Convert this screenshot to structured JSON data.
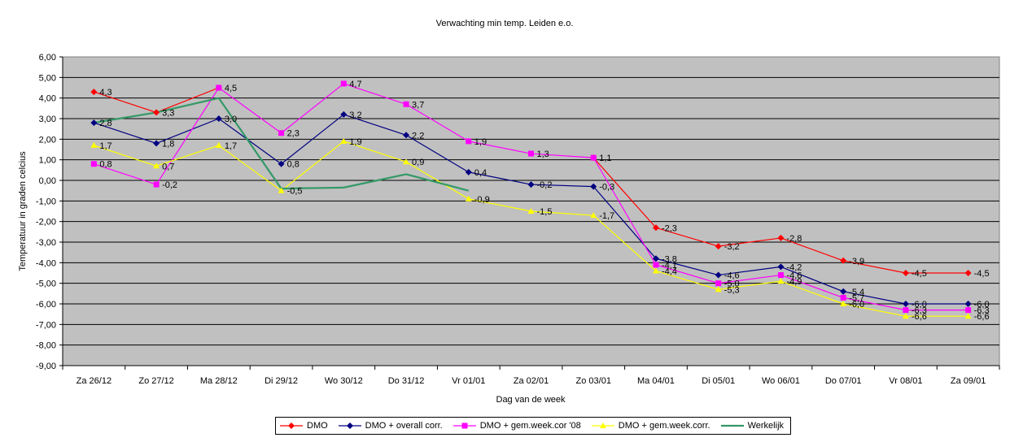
{
  "chart_data": {
    "type": "line",
    "title": "Verwachting min temp. Leiden e.o.",
    "xlabel": "Dag van de week",
    "ylabel": "Temperatuur in graden celcius",
    "ylim": [
      -9,
      6
    ],
    "ytick_step": 1,
    "ytick_labels": [
      "-9,00",
      "-8,00",
      "-7,00",
      "-6,00",
      "-5,00",
      "-4,00",
      "-3,00",
      "-2,00",
      "-1,00",
      "0,00",
      "1,00",
      "2,00",
      "3,00",
      "4,00",
      "5,00",
      "6,00"
    ],
    "grid": true,
    "plot_background": "#c0c0c0",
    "legend_position": "bottom",
    "categories": [
      "Za 26/12",
      "Zo 27/12",
      "Ma 28/12",
      "Di 29/12",
      "Wo 30/12",
      "Do 31/12",
      "Vr 01/01",
      "Za 02/01",
      "Zo 03/01",
      "Ma 04/01",
      "Di 05/01",
      "Wo 06/01",
      "Do 07/01",
      "Vr 08/01",
      "Za 09/01"
    ],
    "series": [
      {
        "name": "DMO",
        "color": "#ff0000",
        "marker": "diamond",
        "values": [
          4.3,
          3.3,
          4.5,
          null,
          null,
          null,
          null,
          null,
          1.1,
          -2.3,
          -3.2,
          -2.8,
          -3.9,
          -4.5,
          -4.5
        ],
        "labels": [
          "4,3",
          "3,3",
          "4,5",
          "",
          "",
          "",
          "",
          "",
          "1,1",
          "-2,3",
          "-3,2",
          "-2,8",
          "-3,9",
          "-4,5",
          "-4,5"
        ]
      },
      {
        "name": "DMO + overall corr.",
        "color": "#000080",
        "marker": "diamond",
        "values": [
          2.8,
          1.8,
          3.0,
          0.8,
          3.2,
          2.2,
          0.4,
          -0.2,
          -0.3,
          -3.8,
          -4.6,
          -4.2,
          -5.4,
          -6.0,
          -6.0
        ],
        "labels": [
          "2,8",
          "1,8",
          "3,0",
          "0,8",
          "3,2",
          "2,2",
          "0,4",
          "-0,2",
          "-0,3",
          "-3,8",
          "-4,6",
          "-4,2",
          "-5,4",
          "-6,0",
          "-6,0"
        ]
      },
      {
        "name": "DMO + gem.week.cor '08",
        "color": "#ff00ff",
        "marker": "square",
        "values": [
          0.8,
          -0.2,
          4.5,
          2.3,
          4.7,
          3.7,
          1.9,
          1.3,
          1.1,
          -4.1,
          -5.0,
          -4.6,
          -5.7,
          -6.3,
          -6.3
        ],
        "labels": [
          "0,8",
          "-0,2",
          "",
          "2,3",
          "4,7",
          "3,7",
          "1,9",
          "1,3",
          "",
          "-4,1",
          "-5,0",
          "-4,6",
          "-5,7",
          "-6,3",
          "-6,3"
        ]
      },
      {
        "name": "DMO + gem.week.corr.",
        "color": "#ffff00",
        "marker": "triangle",
        "values": [
          1.7,
          0.7,
          1.7,
          -0.5,
          1.9,
          0.9,
          -0.9,
          -1.5,
          -1.7,
          -4.4,
          -5.3,
          -4.9,
          -6.0,
          -6.6,
          -6.6
        ],
        "labels": [
          "1,7",
          "0,7",
          "1,7",
          "-0,5",
          "1,9",
          "0,9",
          "-0,9",
          "-1,5",
          "-1,7",
          "-4,4",
          "-5,3",
          "-4,9",
          "-6,0",
          "-6,6",
          "-6,6"
        ]
      },
      {
        "name": "Werkelijk",
        "color": "#339966",
        "marker": "none",
        "values": [
          2.8,
          3.3,
          4.0,
          -0.4,
          -0.35,
          0.3,
          -0.5,
          null,
          null,
          null,
          null,
          null,
          null,
          null,
          null
        ],
        "labels": [
          "",
          "",
          "",
          "",
          "",
          "",
          "",
          "",
          "",
          "",
          "",
          "",
          "",
          "",
          ""
        ]
      }
    ]
  }
}
